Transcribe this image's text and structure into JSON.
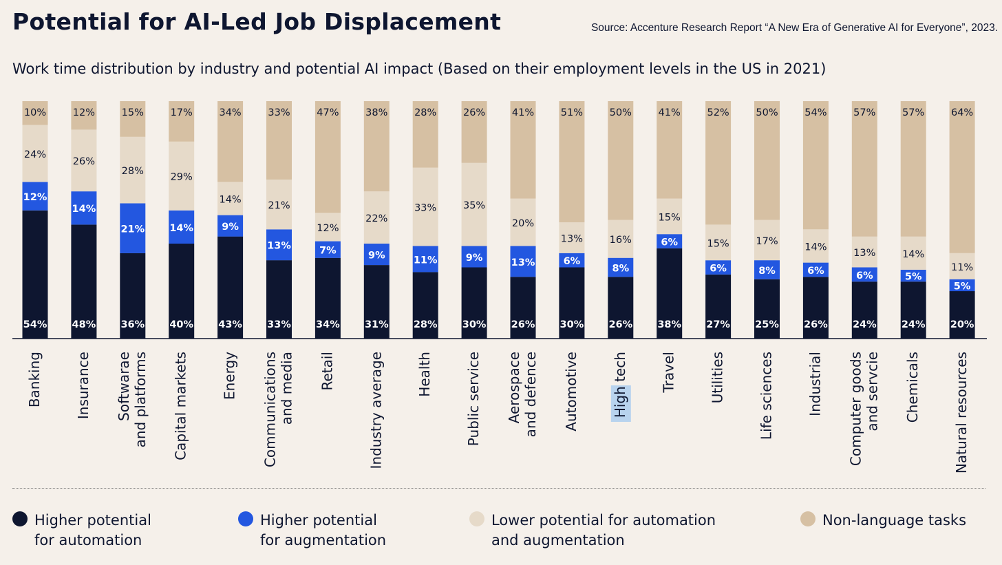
{
  "title": "Potential for AI-Led Job Displacement",
  "source": "Source: Accenture Research Report “A New Era of Generative AI for Everyone”, 2023.",
  "subtitle": "Work time distribution by industry and potential AI impact (Based on their employment levels in the US in 2021)",
  "colors": {
    "automation": "#0e1630",
    "augmentation": "#2357e0",
    "lower": "#e6dac9",
    "nonlanguage": "#d6c0a3",
    "background": "#f5f0ea"
  },
  "legend": [
    {
      "key": "automation",
      "label": "Higher potential for automation"
    },
    {
      "key": "augmentation",
      "label": "Higher potential for augmentation"
    },
    {
      "key": "lower",
      "label": "Lower potential for automation and augmentation"
    },
    {
      "key": "nonlanguage",
      "label": "Non-language tasks"
    }
  ],
  "chart_data": {
    "type": "bar",
    "stacked": true,
    "categories": [
      "Banking",
      "Insurance",
      "Softwarae and platforms",
      "Capital markets",
      "Energy",
      "Communications and media",
      "Retail",
      "Industry average",
      "Health",
      "Public service",
      "Aerospace and defence",
      "Automotive",
      "High tech",
      "Travel",
      "Utilities",
      "Life sciences",
      "Industrial",
      "Computer goods and servcie",
      "Chemicals",
      "Natural resources"
    ],
    "category_lines": [
      [
        "Banking"
      ],
      [
        "Insurance"
      ],
      [
        "Softwarae",
        "and platforms"
      ],
      [
        "Capital markets"
      ],
      [
        "Energy"
      ],
      [
        "Communications",
        "and media"
      ],
      [
        "Retail"
      ],
      [
        "Industry average"
      ],
      [
        "Health"
      ],
      [
        "Public service"
      ],
      [
        "Aerospace",
        "and defence"
      ],
      [
        "Automotive"
      ],
      [
        "High tech"
      ],
      [
        "Travel"
      ],
      [
        "Utilities"
      ],
      [
        "Life sciences"
      ],
      [
        "Industrial"
      ],
      [
        "Computer goods",
        "and servcie"
      ],
      [
        "Chemicals"
      ],
      [
        "Natural resources"
      ]
    ],
    "highlighted_category": "High tech",
    "series": [
      {
        "name": "Higher potential for automation",
        "key": "automation",
        "values": [
          54,
          48,
          36,
          40,
          43,
          33,
          34,
          31,
          28,
          30,
          26,
          30,
          26,
          38,
          27,
          25,
          26,
          24,
          24,
          20
        ]
      },
      {
        "name": "Higher potential for augmentation",
        "key": "augmentation",
        "values": [
          12,
          14,
          21,
          14,
          9,
          13,
          7,
          9,
          11,
          9,
          13,
          6,
          8,
          6,
          6,
          8,
          6,
          6,
          5,
          5
        ]
      },
      {
        "name": "Lower potential for automation and augmentation",
        "key": "lower",
        "values": [
          24,
          26,
          28,
          29,
          14,
          21,
          12,
          22,
          33,
          35,
          20,
          13,
          16,
          15,
          15,
          17,
          14,
          13,
          14,
          11
        ]
      },
      {
        "name": "Non-language tasks",
        "key": "nonlanguage",
        "values": [
          10,
          12,
          15,
          17,
          34,
          33,
          47,
          38,
          28,
          26,
          41,
          51,
          50,
          41,
          52,
          50,
          54,
          57,
          57,
          64
        ]
      }
    ],
    "value_suffix": "%",
    "ylim": [
      0,
      100
    ]
  }
}
